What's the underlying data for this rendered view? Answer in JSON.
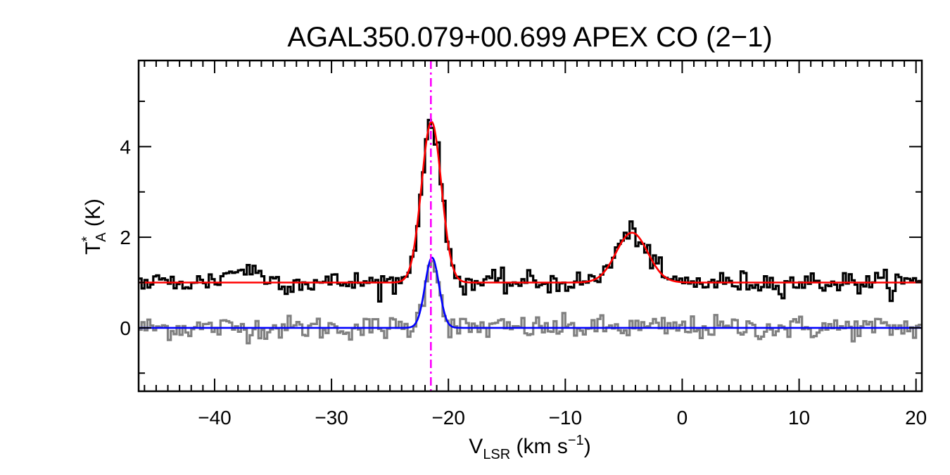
{
  "chart_data": {
    "type": "line",
    "title": "AGAL350.079+00.699  APEX CO (2−1)",
    "xlabel": {
      "main": "V",
      "sub": "LSR",
      "unit_open": " (km s",
      "unit_sup": "−1",
      "unit_close": ")"
    },
    "ylabel": {
      "main": "T",
      "sup": "*",
      "sub": "A",
      "unit": " (K)"
    },
    "xlim": [
      -46.5,
      20.5
    ],
    "ylim": [
      -1.4,
      5.9
    ],
    "x_ticks": [
      -40,
      -30,
      -20,
      -10,
      0,
      10,
      20
    ],
    "x_tick_labels": [
      "−40",
      "−30",
      "−20",
      "−10",
      "0",
      "10",
      "20"
    ],
    "y_ticks": [
      0,
      2,
      4
    ],
    "y_tick_labels": [
      "0",
      "2",
      "4"
    ],
    "grid": false,
    "reference_velocity": -21.5,
    "series": [
      {
        "role": "observed-spectrum-offset",
        "color": "#000000",
        "baseline": 1.0,
        "noise": 0.12,
        "components": [
          {
            "amp": 3.55,
            "center": -21.45,
            "sigma": 0.85
          },
          {
            "amp": 1.1,
            "center": -4.3,
            "sigma": 1.35
          },
          {
            "amp": 0.3,
            "center": -37.5,
            "sigma": 1.4
          }
        ]
      },
      {
        "role": "fit-offset",
        "color": "#ff0000",
        "baseline": 1.0,
        "components": [
          {
            "amp": 3.55,
            "center": -21.45,
            "sigma": 0.85
          },
          {
            "amp": 1.1,
            "center": -4.3,
            "sigma": 1.35
          }
        ]
      },
      {
        "role": "residual-spectrum",
        "color": "#808080",
        "baseline": 0.0,
        "noise": 0.13,
        "components": [
          {
            "amp": 1.55,
            "center": -21.4,
            "sigma": 0.6
          }
        ]
      },
      {
        "role": "residual-fit",
        "color": "#0000ff",
        "baseline": 0.0,
        "components": [
          {
            "amp": 1.55,
            "center": -21.4,
            "sigma": 0.6
          }
        ]
      }
    ],
    "colors": {
      "axes": "#000000",
      "marker_line": "#ff00ff"
    }
  }
}
